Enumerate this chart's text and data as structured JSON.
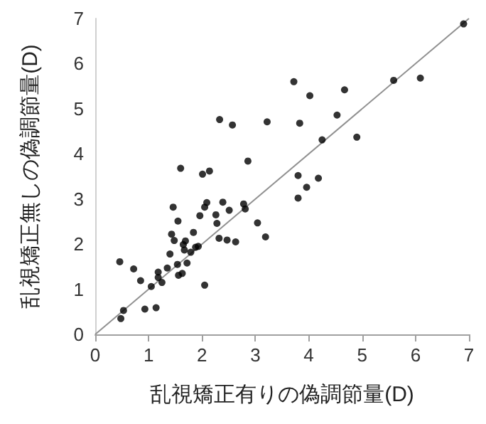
{
  "chart_data": {
    "type": "scatter",
    "xlabel": "乱視矯正有りの偽調節量(D)",
    "ylabel": "乱視矯正無しの偽調節量(D)",
    "xlim": [
      0,
      7
    ],
    "xticks": [
      0,
      1,
      2,
      3,
      4,
      5,
      6,
      7
    ],
    "ylim": [
      0,
      7
    ],
    "yticks": [
      0,
      1,
      2,
      3,
      4,
      5,
      6,
      7
    ],
    "grid": false,
    "marker": "circle",
    "series": [
      {
        "color": "#000000",
        "x": [
          0.46,
          0.48,
          0.53,
          0.72,
          0.85,
          0.93,
          1.05,
          1.14,
          1.18,
          1.18,
          1.25,
          1.35,
          1.4,
          1.43,
          1.46,
          1.48,
          1.55,
          1.54,
          1.6,
          1.56,
          1.63,
          1.65,
          1.69,
          1.72,
          1.67,
          1.79,
          1.84,
          1.88,
          1.93,
          1.96,
          2.01,
          2.05,
          2.05,
          2.09,
          2.14,
          2.26,
          2.28,
          2.32,
          2.33,
          2.39,
          2.47,
          2.51,
          2.57,
          2.63,
          2.78,
          2.81,
          2.86,
          3.04,
          3.19,
          3.22,
          3.72,
          3.83,
          4.02,
          4.25,
          4.53,
          4.67,
          4.9,
          3.8,
          4.18,
          3.96,
          3.8,
          5.59,
          6.09,
          6.9
        ],
        "values": [
          1.61,
          0.35,
          0.53,
          1.45,
          1.19,
          0.56,
          1.06,
          0.59,
          1.38,
          1.26,
          1.15,
          1.47,
          1.78,
          2.22,
          2.82,
          2.08,
          2.51,
          1.55,
          3.68,
          1.31,
          1.35,
          1.99,
          2.07,
          1.58,
          1.87,
          1.82,
          2.26,
          1.93,
          1.95,
          2.63,
          3.55,
          1.09,
          2.82,
          2.92,
          3.62,
          2.65,
          2.46,
          2.13,
          4.76,
          2.93,
          2.09,
          2.75,
          4.64,
          2.05,
          2.89,
          2.78,
          3.84,
          2.47,
          2.16,
          4.71,
          5.6,
          4.68,
          5.29,
          4.31,
          4.86,
          5.42,
          4.37,
          3.52,
          3.46,
          3.26,
          3.02,
          5.63,
          5.68,
          6.88
        ]
      },
      {
        "type": "line",
        "color": "#909090",
        "marker": "none",
        "x": [
          0,
          7
        ],
        "values": [
          0,
          7
        ]
      }
    ]
  }
}
